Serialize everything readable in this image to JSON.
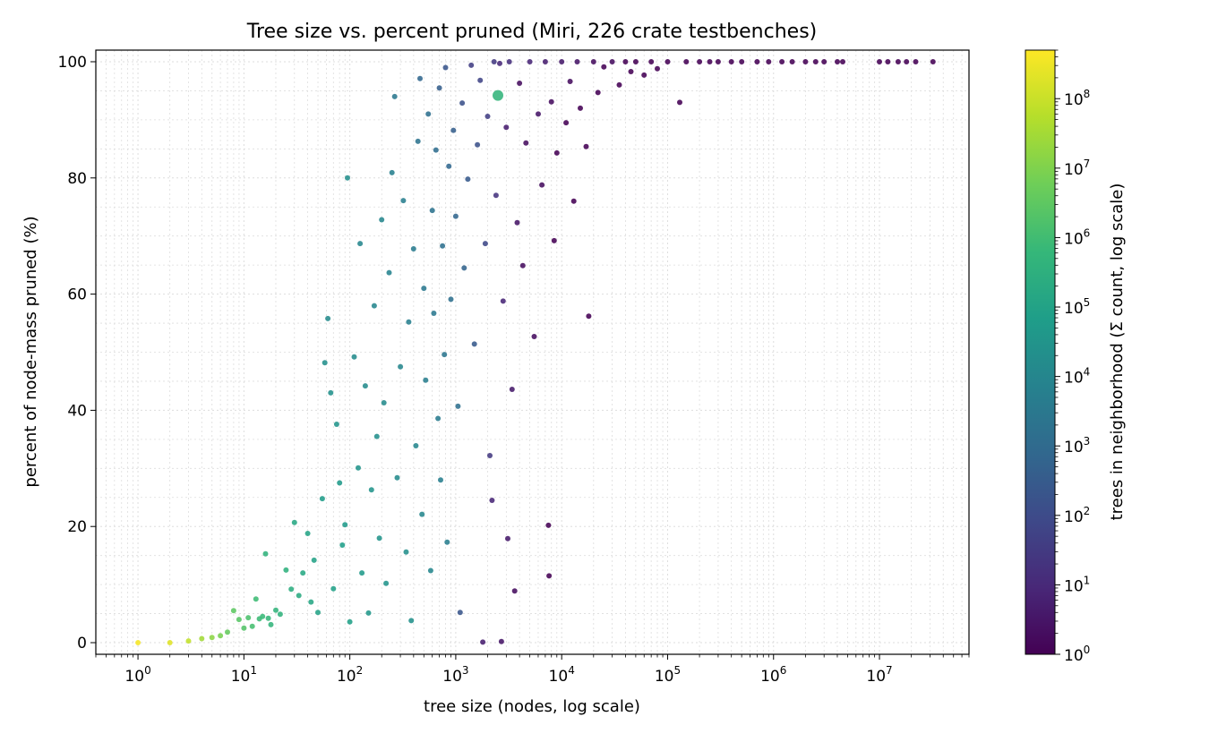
{
  "chart_data": {
    "type": "scatter",
    "title": "Tree size vs. percent pruned  (Miri, 226 crate testbenches)",
    "xlabel": "tree size (nodes, log scale)",
    "ylabel": "percent of node-mass pruned (%)",
    "x_scale": "log",
    "y_scale": "linear",
    "xlim": [
      0.4,
      70000000
    ],
    "ylim": [
      -2,
      102
    ],
    "grid": true,
    "x_ticks": [
      {
        "value": 1,
        "base": "10",
        "exp": "0"
      },
      {
        "value": 10,
        "base": "10",
        "exp": "1"
      },
      {
        "value": 100,
        "base": "10",
        "exp": "2"
      },
      {
        "value": 1000,
        "base": "10",
        "exp": "3"
      },
      {
        "value": 10000,
        "base": "10",
        "exp": "4"
      },
      {
        "value": 100000,
        "base": "10",
        "exp": "5"
      },
      {
        "value": 1000000,
        "base": "10",
        "exp": "6"
      },
      {
        "value": 10000000,
        "base": "10",
        "exp": "7"
      }
    ],
    "y_ticks": [
      {
        "value": 0,
        "label": "0"
      },
      {
        "value": 20,
        "label": "20"
      },
      {
        "value": 40,
        "label": "40"
      },
      {
        "value": 60,
        "label": "60"
      },
      {
        "value": 80,
        "label": "80"
      },
      {
        "value": 100,
        "label": "100"
      }
    ],
    "colorbar": {
      "label": "trees in neighborhood  (Σ count, log scale)",
      "scale": "log",
      "colormap": "viridis",
      "range": [
        1,
        500000000
      ],
      "ticks": [
        {
          "value": 1,
          "base": "10",
          "exp": "0"
        },
        {
          "value": 10,
          "base": "10",
          "exp": "1"
        },
        {
          "value": 100,
          "base": "10",
          "exp": "2"
        },
        {
          "value": 1000,
          "base": "10",
          "exp": "3"
        },
        {
          "value": 10000,
          "base": "10",
          "exp": "4"
        },
        {
          "value": 100000,
          "base": "10",
          "exp": "5"
        },
        {
          "value": 1000000,
          "base": "10",
          "exp": "6"
        },
        {
          "value": 10000000,
          "base": "10",
          "exp": "7"
        },
        {
          "value": 100000000,
          "base": "10",
          "exp": "8"
        }
      ]
    },
    "colormap_stops": [
      "#440154",
      "#482878",
      "#3e4989",
      "#31688e",
      "#26828e",
      "#1f9e89",
      "#35b779",
      "#6ece58",
      "#b5de2b",
      "#fde725"
    ],
    "points": [
      [
        1,
        0,
        400000000
      ],
      [
        2,
        0,
        200000000
      ],
      [
        3,
        0.3,
        80000000
      ],
      [
        4,
        0.7,
        30000000
      ],
      [
        5,
        0.9,
        15000000
      ],
      [
        6,
        1.2,
        8000000
      ],
      [
        7,
        1.8,
        4000000
      ],
      [
        8,
        5.5,
        3000000
      ],
      [
        9,
        4.0,
        2500000
      ],
      [
        10,
        2.5,
        2000000
      ],
      [
        11,
        4.3,
        1500000
      ],
      [
        12,
        2.8,
        1200000
      ],
      [
        13,
        7.5,
        900000
      ],
      [
        14,
        4.1,
        800000
      ],
      [
        15,
        4.5,
        700000
      ],
      [
        16,
        15.3,
        400000
      ],
      [
        17,
        4.2,
        600000
      ],
      [
        18,
        3.1,
        500000
      ],
      [
        20,
        5.6,
        450000
      ],
      [
        22,
        4.9,
        400000
      ],
      [
        25,
        12.5,
        350000
      ],
      [
        28,
        9.2,
        250000
      ],
      [
        30,
        20.7,
        150000
      ],
      [
        33,
        8.1,
        200000
      ],
      [
        36,
        12.0,
        160000
      ],
      [
        40,
        18.8,
        120000
      ],
      [
        43,
        7.0,
        140000
      ],
      [
        46,
        14.2,
        100000
      ],
      [
        50,
        5.2,
        110000
      ],
      [
        55,
        24.8,
        60000
      ],
      [
        58,
        48.2,
        20000
      ],
      [
        62,
        55.8,
        15000
      ],
      [
        66,
        43.0,
        25000
      ],
      [
        70,
        9.3,
        90000
      ],
      [
        75,
        37.6,
        30000
      ],
      [
        80,
        27.5,
        50000
      ],
      [
        85,
        16.8,
        70000
      ],
      [
        90,
        20.3,
        50000
      ],
      [
        95,
        80.0,
        20000
      ],
      [
        100,
        3.6,
        80000
      ],
      [
        110,
        49.2,
        15000
      ],
      [
        120,
        30.1,
        30000
      ],
      [
        125,
        68.7,
        10000
      ],
      [
        130,
        12.0,
        50000
      ],
      [
        140,
        44.2,
        15000
      ],
      [
        150,
        5.1,
        40000
      ],
      [
        160,
        26.3,
        30000
      ],
      [
        170,
        58.0,
        10000
      ],
      [
        180,
        35.5,
        20000
      ],
      [
        190,
        18.0,
        30000
      ],
      [
        200,
        72.8,
        10000
      ],
      [
        210,
        41.3,
        15000
      ],
      [
        220,
        10.2,
        30000
      ],
      [
        235,
        63.7,
        8000
      ],
      [
        250,
        80.9,
        6000
      ],
      [
        265,
        94.0,
        3000
      ],
      [
        280,
        28.4,
        15000
      ],
      [
        300,
        47.5,
        10000
      ],
      [
        320,
        76.1,
        5000
      ],
      [
        340,
        15.6,
        20000
      ],
      [
        360,
        55.2,
        6000
      ],
      [
        380,
        3.8,
        25000
      ],
      [
        400,
        67.8,
        4000
      ],
      [
        420,
        33.9,
        10000
      ],
      [
        440,
        86.3,
        2000
      ],
      [
        460,
        97.1,
        800
      ],
      [
        480,
        22.1,
        10000
      ],
      [
        500,
        61.0,
        3000
      ],
      [
        520,
        45.2,
        5000
      ],
      [
        550,
        91.0,
        1500
      ],
      [
        580,
        12.4,
        10000
      ],
      [
        600,
        74.4,
        2000
      ],
      [
        620,
        56.7,
        3000
      ],
      [
        650,
        84.8,
        1200
      ],
      [
        680,
        38.6,
        4000
      ],
      [
        700,
        95.5,
        400
      ],
      [
        720,
        28.0,
        5000
      ],
      [
        750,
        68.3,
        1500
      ],
      [
        780,
        49.6,
        2500
      ],
      [
        800,
        99.0,
        200
      ],
      [
        830,
        17.3,
        5000
      ],
      [
        860,
        82.0,
        800
      ],
      [
        900,
        59.1,
        1500
      ],
      [
        950,
        88.2,
        400
      ],
      [
        1000,
        73.4,
        700
      ],
      [
        1050,
        40.7,
        1500
      ],
      [
        1100,
        5.2,
        200
      ],
      [
        1150,
        92.9,
        150
      ],
      [
        1200,
        64.5,
        600
      ],
      [
        1300,
        79.8,
        300
      ],
      [
        1400,
        99.4,
        40
      ],
      [
        1500,
        51.4,
        300
      ],
      [
        1600,
        85.7,
        150
      ],
      [
        1700,
        96.8,
        60
      ],
      [
        1800,
        0.1,
        5
      ],
      [
        1900,
        68.7,
        80
      ],
      [
        2000,
        90.6,
        40
      ],
      [
        2100,
        32.2,
        30
      ],
      [
        2200,
        24.5,
        8
      ],
      [
        2300,
        100,
        30
      ],
      [
        2400,
        77.0,
        20
      ],
      [
        2500,
        94.2,
        500000
      ],
      [
        2600,
        99.7,
        10
      ],
      [
        2700,
        0.2,
        3
      ],
      [
        2800,
        58.8,
        8
      ],
      [
        3000,
        88.7,
        5
      ],
      [
        3100,
        17.9,
        4
      ],
      [
        3200,
        100,
        15
      ],
      [
        3400,
        43.6,
        4
      ],
      [
        3600,
        8.9,
        2
      ],
      [
        3800,
        72.3,
        3
      ],
      [
        4000,
        96.3,
        2
      ],
      [
        4300,
        64.9,
        2
      ],
      [
        4600,
        86.0,
        2
      ],
      [
        5000,
        100,
        8
      ],
      [
        5500,
        52.7,
        2
      ],
      [
        6000,
        91.0,
        3
      ],
      [
        6500,
        78.8,
        2
      ],
      [
        7000,
        100,
        5
      ],
      [
        7500,
        20.2,
        1
      ],
      [
        7600,
        11.5,
        1
      ],
      [
        8000,
        93.1,
        2
      ],
      [
        8500,
        69.2,
        1
      ],
      [
        9000,
        84.3,
        1
      ],
      [
        10000,
        100,
        4
      ],
      [
        11000,
        89.5,
        1
      ],
      [
        12000,
        96.6,
        2
      ],
      [
        13000,
        76.0,
        1
      ],
      [
        14000,
        100,
        3
      ],
      [
        15000,
        92.0,
        1
      ],
      [
        17000,
        85.4,
        1
      ],
      [
        18000,
        56.2,
        1
      ],
      [
        20000,
        100,
        2
      ],
      [
        22000,
        94.7,
        1
      ],
      [
        25000,
        99.1,
        1
      ],
      [
        30000,
        100,
        2
      ],
      [
        35000,
        96.0,
        1
      ],
      [
        40000,
        100,
        1
      ],
      [
        45000,
        98.3,
        1
      ],
      [
        50000,
        100,
        1
      ],
      [
        60000,
        97.7,
        1
      ],
      [
        70000,
        100,
        1
      ],
      [
        80000,
        98.8,
        1
      ],
      [
        100000,
        100,
        1
      ],
      [
        130000,
        93.0,
        1
      ],
      [
        150000,
        100,
        1
      ],
      [
        200000,
        100,
        1
      ],
      [
        250000,
        100,
        1
      ],
      [
        300000,
        100,
        1
      ],
      [
        400000,
        100,
        1
      ],
      [
        500000,
        100,
        1
      ],
      [
        700000,
        100,
        1
      ],
      [
        900000,
        100,
        1
      ],
      [
        1200000,
        100,
        1
      ],
      [
        1500000,
        100,
        1
      ],
      [
        2000000,
        100,
        1
      ],
      [
        2500000,
        100,
        1
      ],
      [
        3000000,
        100,
        1
      ],
      [
        4000000,
        100,
        1
      ],
      [
        4500000,
        100,
        1
      ],
      [
        10000000,
        100,
        1
      ],
      [
        12000000,
        100,
        1
      ],
      [
        15000000,
        100,
        1
      ],
      [
        18000000,
        100,
        1
      ],
      [
        22000000,
        100,
        1
      ],
      [
        32000000,
        100,
        1
      ]
    ]
  }
}
